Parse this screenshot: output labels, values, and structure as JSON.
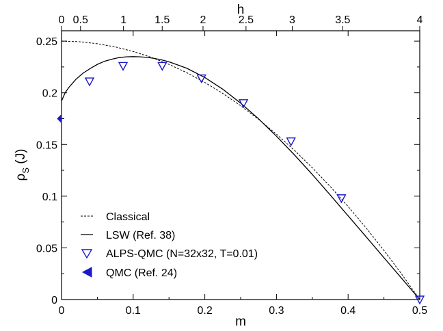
{
  "chart_data": {
    "type": "line",
    "xlabel": "m",
    "ylabel_main": "ρ",
    "ylabel_sub": "S",
    "ylabel_unit": " (J)",
    "top_axis_label": "h",
    "xlim": [
      0,
      0.5
    ],
    "ylim": [
      0,
      0.26
    ],
    "x_ticks": [
      0,
      0.1,
      0.2,
      0.3,
      0.4,
      0.5
    ],
    "x_tick_labels": [
      "0",
      "0.1",
      "0.2",
      "0.3",
      "0.4",
      "0.5"
    ],
    "y_ticks": [
      0,
      0.05,
      0.1,
      0.15,
      0.2,
      0.25
    ],
    "y_tick_labels": [
      "0",
      "0.05",
      "0.1",
      "0.15",
      "0.2",
      "0.25"
    ],
    "top_ticks": [
      {
        "m": 0.0,
        "label": "0"
      },
      {
        "m": 0.0265,
        "label": "0.5"
      },
      {
        "m": 0.0865,
        "label": "1"
      },
      {
        "m": 0.1405,
        "label": "1.5"
      },
      {
        "m": 0.1975,
        "label": "2"
      },
      {
        "m": 0.2575,
        "label": "2.5"
      },
      {
        "m": 0.322,
        "label": "3"
      },
      {
        "m": 0.3925,
        "label": "3.5"
      },
      {
        "m": 0.5,
        "label": "4"
      }
    ],
    "series": [
      {
        "name": "Classical",
        "style": "dashed",
        "color": "#000000",
        "x": [
          0,
          0.025,
          0.05,
          0.075,
          0.1,
          0.125,
          0.15,
          0.175,
          0.2,
          0.225,
          0.25,
          0.275,
          0.3,
          0.325,
          0.35,
          0.375,
          0.4,
          0.425,
          0.45,
          0.475,
          0.5
        ],
        "y": [
          0.25,
          0.2494,
          0.2475,
          0.2444,
          0.24,
          0.2344,
          0.2275,
          0.2194,
          0.21,
          0.1994,
          0.1875,
          0.1744,
          0.16,
          0.1444,
          0.1275,
          0.1094,
          0.09,
          0.0694,
          0.0475,
          0.0244,
          0.0
        ]
      },
      {
        "name": "LSW (Ref. 38)",
        "style": "solid",
        "color": "#000000",
        "x": [
          0,
          0.005,
          0.01,
          0.02,
          0.03,
          0.04,
          0.05,
          0.06,
          0.07,
          0.08,
          0.09,
          0.1,
          0.11,
          0.12,
          0.13,
          0.14,
          0.15,
          0.175,
          0.2,
          0.225,
          0.25,
          0.275,
          0.3,
          0.325,
          0.35,
          0.375,
          0.4,
          0.425,
          0.45,
          0.475,
          0.5
        ],
        "y": [
          0.192,
          0.2,
          0.205,
          0.213,
          0.219,
          0.2235,
          0.2275,
          0.2305,
          0.2325,
          0.234,
          0.2348,
          0.235,
          0.2348,
          0.2342,
          0.2332,
          0.2318,
          0.23,
          0.2237,
          0.2148,
          0.2035,
          0.19,
          0.1748,
          0.158,
          0.14,
          0.121,
          0.1012,
          0.081,
          0.0608,
          0.0405,
          0.0203,
          0.0
        ]
      },
      {
        "name": "ALPS-QMC (N=32x32, T=0.01)",
        "style": "markers",
        "marker": "triangle-down-open",
        "color": "#1a1acc",
        "x": [
          0.0391,
          0.0859,
          0.1406,
          0.1953,
          0.2539,
          0.3203,
          0.3906,
          0.5
        ],
        "y": [
          0.211,
          0.226,
          0.226,
          0.214,
          0.19,
          0.153,
          0.098,
          0.0
        ]
      },
      {
        "name": "QMC (Ref. 24)",
        "style": "markers",
        "marker": "triangle-left-filled",
        "color": "#1a1acc",
        "x": [
          0.0
        ],
        "y": [
          0.175
        ]
      }
    ],
    "legend_position": "bottom-left",
    "grid": false
  }
}
